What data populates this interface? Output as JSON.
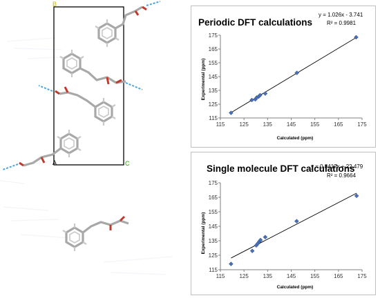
{
  "structure": {
    "cell_labels": [
      "B",
      "A",
      "C"
    ]
  },
  "chart_data": [
    {
      "type": "scatter",
      "title": "Periodic DFT calculations",
      "equation": "y = 1.026x - 3.741",
      "r_squared": "R² = 0.9981",
      "xlabel": "Calculated (ppm)",
      "ylabel": "Experimental (ppm)",
      "xlim": [
        115,
        175
      ],
      "ylim": [
        115,
        175
      ],
      "xticks": [
        "115",
        "125",
        "135",
        "145",
        "155",
        "165",
        "175"
      ],
      "yticks": [
        "115",
        "125",
        "135",
        "145",
        "155",
        "165",
        "175"
      ],
      "x": [
        119.5,
        128.3,
        129.8,
        130.4,
        131.2,
        131.8,
        134.0,
        147.4,
        172.5
      ],
      "y": [
        118.7,
        128.0,
        128.5,
        129.8,
        130.5,
        131.5,
        132.7,
        147.7,
        173.5
      ],
      "trendline": {
        "slope": 1.026,
        "intercept": -3.741
      },
      "color": "#4a6fb5"
    },
    {
      "type": "scatter",
      "title": "Single molecule DFT calculations",
      "equation": "y = 0.8417x + 22.479",
      "r_squared": "R² = 0.9664",
      "xlabel": "Calculated (ppm)",
      "ylabel": "Experimental (ppm)",
      "xlim": [
        115,
        175
      ],
      "ylim": [
        115,
        175
      ],
      "xticks": [
        "115",
        "125",
        "135",
        "145",
        "155",
        "165",
        "175"
      ],
      "yticks": [
        "115",
        "125",
        "135",
        "145",
        "155",
        "165",
        "175"
      ],
      "x": [
        119.5,
        128.5,
        130.2,
        130.8,
        131.5,
        132.0,
        134.0,
        147.3,
        172.7
      ],
      "y": [
        119.0,
        128.0,
        131.8,
        133.0,
        134.5,
        135.5,
        137.5,
        148.5,
        166.0
      ],
      "trendline": {
        "slope": 0.8417,
        "intercept": 22.479
      },
      "color": "#4a6fb5"
    }
  ]
}
